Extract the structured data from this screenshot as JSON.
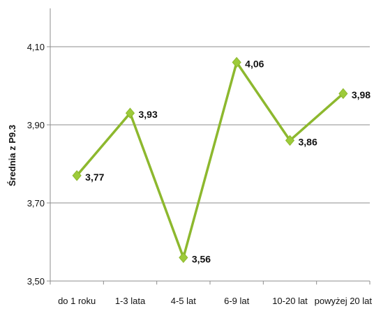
{
  "chart_data": {
    "type": "line",
    "categories": [
      "do 1 roku",
      "1-3 lata",
      "4-5 lat",
      "6-9 lat",
      "10-20 lat",
      "powyżej 20 lat"
    ],
    "series": [
      {
        "values": [
          3.77,
          3.93,
          3.56,
          4.06,
          3.86,
          3.98
        ],
        "data_labels": [
          "3,77",
          "3,93",
          "3,56",
          "4,06",
          "3,86",
          "3,98"
        ]
      }
    ],
    "title": "",
    "xlabel": "",
    "ylabel": "Średnia z P9.3",
    "ylim": [
      3.5,
      4.1
    ],
    "yticks": [
      3.5,
      3.7,
      3.9,
      4.1
    ],
    "ytick_labels": [
      "3,50",
      "3,70",
      "3,90",
      "4,10"
    ],
    "grid": "horizontal",
    "legend": "none",
    "marker": "diamond",
    "colors": {
      "line": "#8DB82E",
      "marker": "#9DCB3A",
      "grid": "#8C8C8C",
      "axis": "#8C8C8C"
    }
  }
}
